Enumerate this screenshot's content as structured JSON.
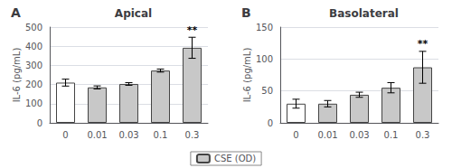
{
  "chart_data": [
    {
      "type": "bar",
      "panel_label": "A",
      "title": "Apical",
      "categories": [
        "0",
        "0.01",
        "0.03",
        "0.1",
        "0.3"
      ],
      "ylabel": "IL-6 (pg/mL)",
      "ylim": [
        0,
        500
      ],
      "yticks": [
        0,
        100,
        200,
        300,
        400,
        500
      ],
      "series": [
        {
          "name": "CSE (OD)",
          "color": "#c8c8c8",
          "colors": [
            "#ffffff",
            "#c8c8c8",
            "#c8c8c8",
            "#c8c8c8",
            "#c8c8c8"
          ],
          "edge_color": "#444444",
          "values": [
            210,
            185,
            203,
            273,
            392
          ],
          "errors": [
            18,
            8,
            7,
            8,
            55
          ]
        }
      ],
      "annotations": [
        {
          "category": "0.3",
          "text": "**"
        }
      ],
      "legend": "bottom"
    },
    {
      "type": "bar",
      "panel_label": "B",
      "title": "Basolateral",
      "categories": [
        "0",
        "0.01",
        "0.03",
        "0.1",
        "0.3"
      ],
      "ylabel": "IL-6 (pg/mL)",
      "ylim": [
        0,
        150
      ],
      "yticks": [
        0,
        50,
        100,
        150
      ],
      "series": [
        {
          "name": "CSE (OD)",
          "color": "#c8c8c8",
          "colors": [
            "#ffffff",
            "#c8c8c8",
            "#c8c8c8",
            "#c8c8c8",
            "#c8c8c8"
          ],
          "edge_color": "#444444",
          "values": [
            30,
            30,
            44,
            55,
            87
          ],
          "errors": [
            7,
            5,
            4,
            8,
            25
          ]
        }
      ],
      "annotations": [
        {
          "category": "0.3",
          "text": "**"
        }
      ],
      "legend": "bottom"
    }
  ]
}
